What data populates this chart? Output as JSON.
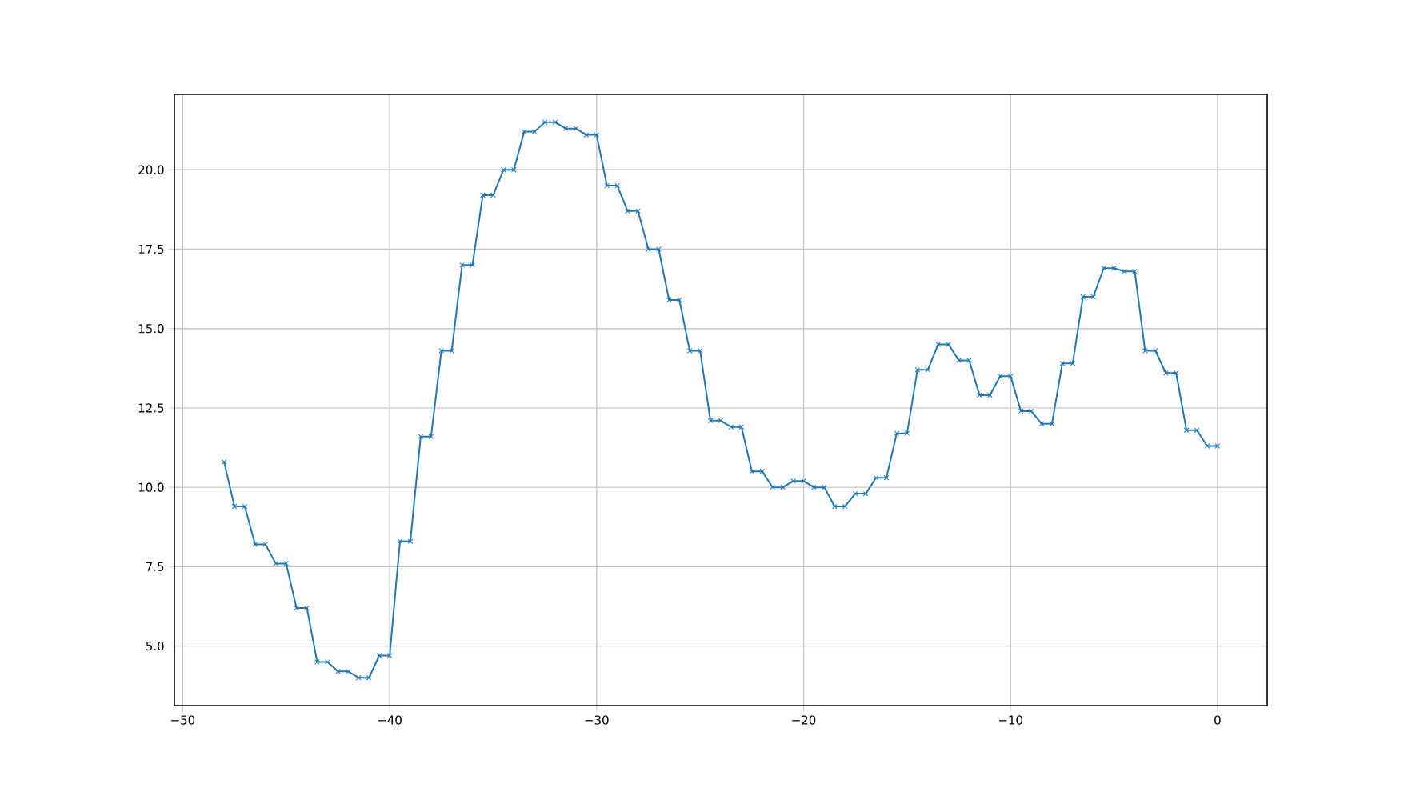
{
  "chart_data": {
    "type": "line",
    "x": [
      -48,
      -47.5,
      -47,
      -46.5,
      -46,
      -45.5,
      -45,
      -44.5,
      -44,
      -43.5,
      -43,
      -42.5,
      -42,
      -41.5,
      -41,
      -40.5,
      -40,
      -39.5,
      -39,
      -38.5,
      -38,
      -37.5,
      -37,
      -36.5,
      -36,
      -35.5,
      -35,
      -34.5,
      -34,
      -33.5,
      -33,
      -32.5,
      -32,
      -31.5,
      -31,
      -30.5,
      -30,
      -29.5,
      -29,
      -28.5,
      -28,
      -27.5,
      -27,
      -26.5,
      -26,
      -25.5,
      -25,
      -24.5,
      -24,
      -23.5,
      -23,
      -22.5,
      -22,
      -21.5,
      -21,
      -20.5,
      -20,
      -19.5,
      -19,
      -18.5,
      -18,
      -17.5,
      -17,
      -16.5,
      -16,
      -15.5,
      -15,
      -14.5,
      -14,
      -13.5,
      -13,
      -12.5,
      -12,
      -11.5,
      -11,
      -10.5,
      -10,
      -9.5,
      -9,
      -8.5,
      -8,
      -7.5,
      -7,
      -6.5,
      -6,
      -5.5,
      -5,
      -4.5,
      -4,
      -3.5,
      -3,
      -2.5,
      -2,
      -1.5,
      -1,
      -0.5,
      0
    ],
    "series": [
      {
        "color": "#1f77b4",
        "values": [
          10.8,
          9.4,
          9.4,
          8.2,
          8.2,
          7.6,
          7.6,
          6.2,
          6.2,
          4.5,
          4.5,
          4.2,
          4.2,
          4.0,
          4.0,
          4.7,
          4.7,
          8.3,
          8.3,
          11.6,
          11.6,
          14.3,
          14.3,
          17.0,
          17.0,
          19.2,
          19.2,
          20.0,
          20.0,
          21.2,
          21.2,
          21.5,
          21.5,
          21.3,
          21.3,
          21.1,
          21.1,
          19.5,
          19.5,
          18.7,
          18.7,
          17.5,
          17.5,
          15.9,
          15.9,
          14.3,
          14.3,
          12.1,
          12.1,
          11.9,
          11.9,
          10.5,
          10.5,
          10.0,
          10.0,
          10.2,
          10.2,
          10.0,
          10.0,
          9.4,
          9.4,
          9.8,
          9.8,
          10.3,
          10.3,
          11.7,
          11.7,
          13.7,
          13.7,
          14.5,
          14.5,
          14.0,
          14.0,
          12.9,
          12.9,
          13.5,
          13.5,
          12.4,
          12.4,
          12.0,
          12.0,
          13.9,
          13.9,
          16.0,
          16.0,
          16.9,
          16.9,
          16.8,
          16.8,
          14.3,
          14.3,
          13.6,
          13.6,
          11.8,
          11.8,
          11.3,
          11.3
        ]
      }
    ],
    "xlim": [
      -50.4,
      2.4
    ],
    "ylim": [
      3.125,
      22.375
    ],
    "xticks": [
      {
        "value": -50,
        "label": "−50"
      },
      {
        "value": -40,
        "label": "−40"
      },
      {
        "value": -30,
        "label": "−30"
      },
      {
        "value": -20,
        "label": "−20"
      },
      {
        "value": -10,
        "label": "−10"
      },
      0
    ],
    "yticks": [
      {
        "value": 5,
        "label": "5.0"
      },
      {
        "value": 7.5,
        "label": "7.5"
      },
      {
        "value": 10,
        "label": "10.0"
      },
      {
        "value": 12.5,
        "label": "12.5"
      },
      {
        "value": 15,
        "label": "15.0"
      },
      {
        "value": 17.5,
        "label": "17.5"
      },
      {
        "value": 20,
        "label": "20.0"
      }
    ],
    "grid": true,
    "marker": "cross",
    "line_style": "solid"
  }
}
